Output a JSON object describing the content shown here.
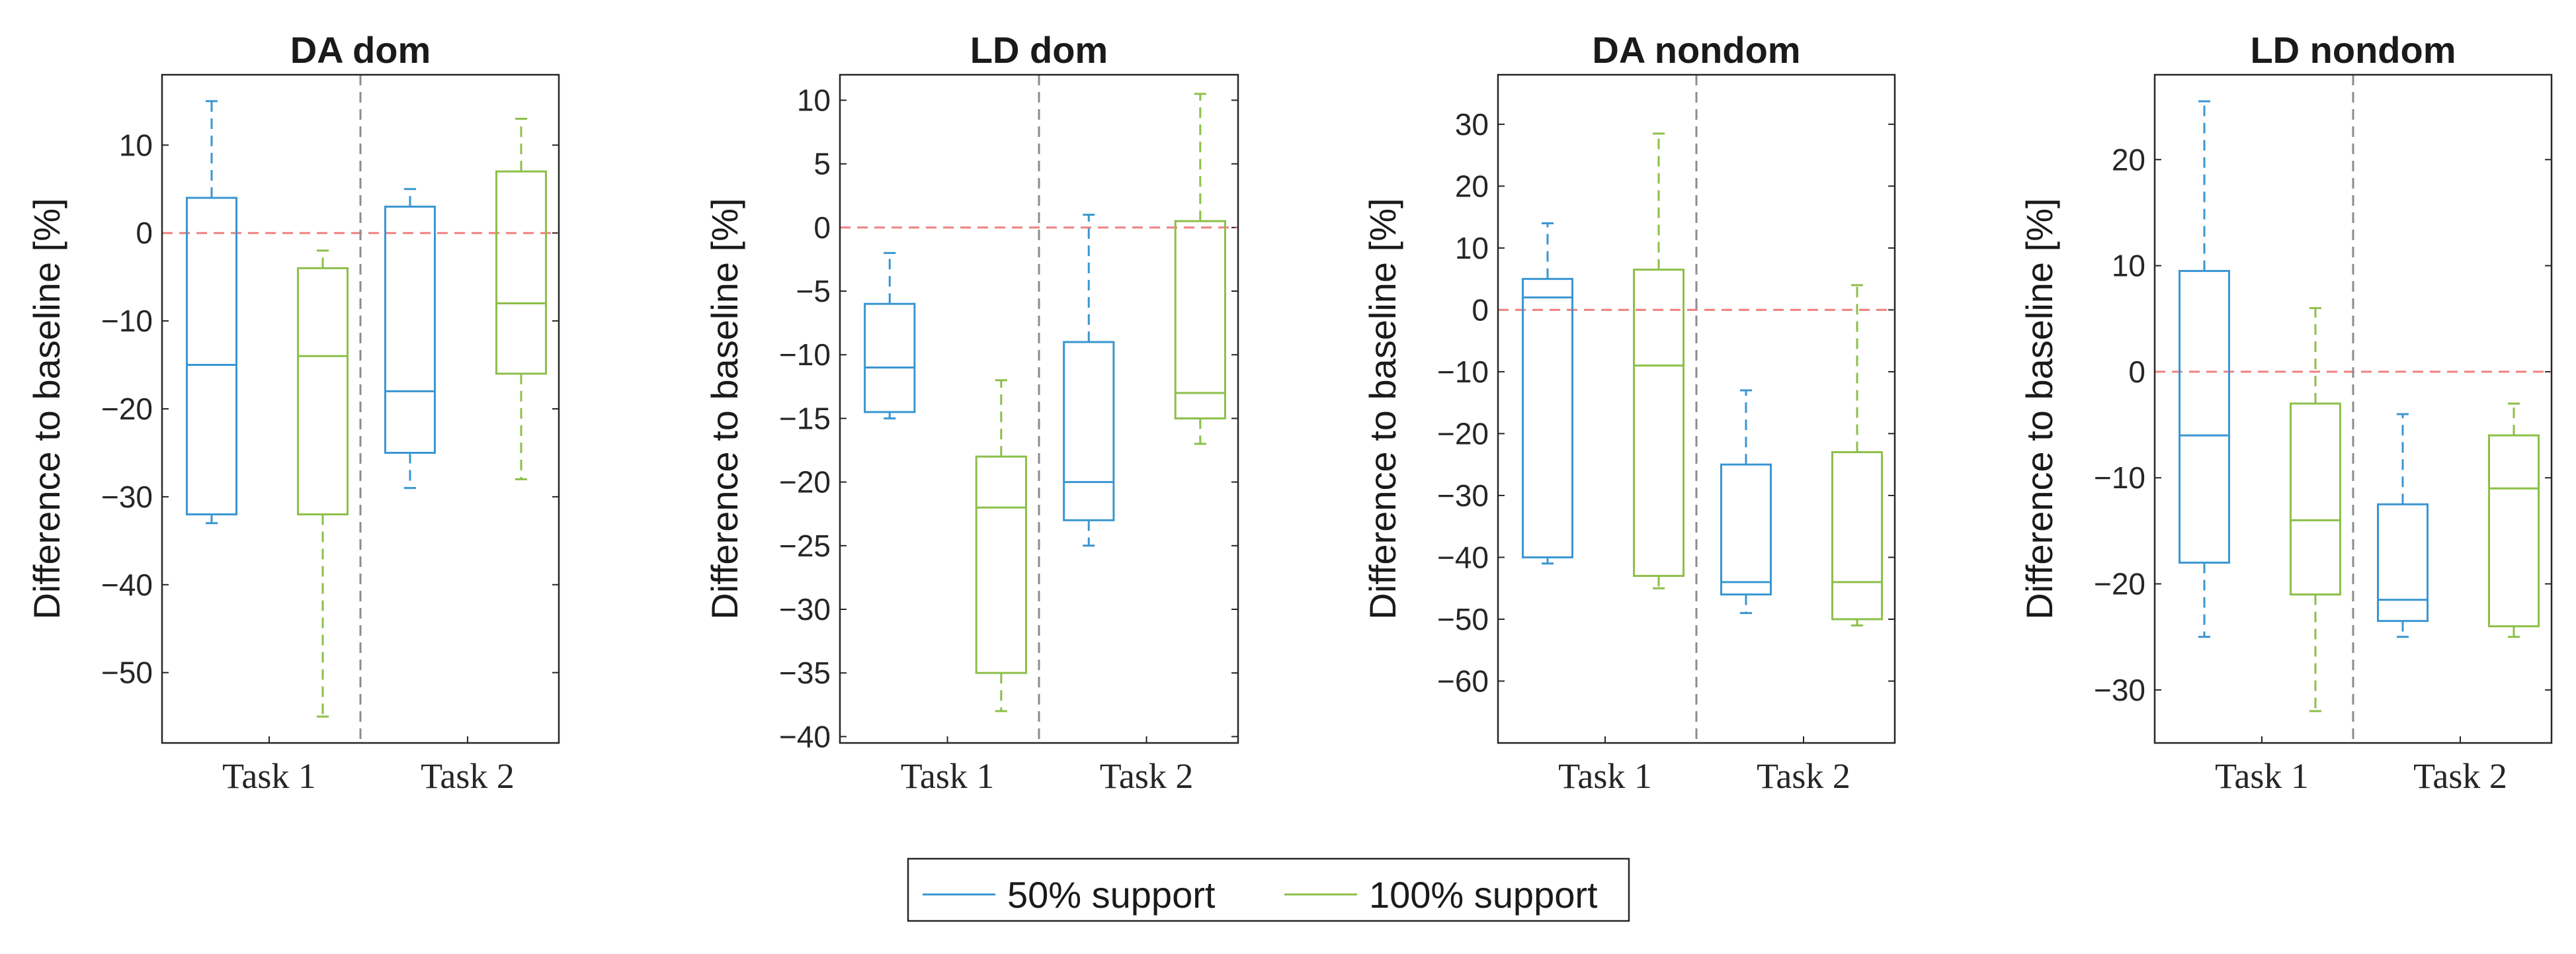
{
  "chart_data": [
    {
      "type": "box",
      "title": "DA dom",
      "ylabel": "Difference to baseline [%]",
      "categories": [
        "Task 1",
        "Task 2"
      ],
      "ylim": [
        -58,
        18
      ],
      "yticks": [
        10,
        0,
        -10,
        -20,
        -30,
        -40,
        -50
      ],
      "baseline": 0,
      "series": [
        {
          "name": "50% support",
          "boxes": [
            {
              "whisker_low": -33,
              "q1": -32,
              "median": -15,
              "q3": 4,
              "whisker_high": 15
            },
            {
              "whisker_low": -29,
              "q1": -25,
              "median": -18,
              "q3": 3,
              "whisker_high": 5
            }
          ]
        },
        {
          "name": "100% support",
          "boxes": [
            {
              "whisker_low": -55,
              "q1": -32,
              "median": -14,
              "q3": -4,
              "whisker_high": -2
            },
            {
              "whisker_low": -28,
              "q1": -16,
              "median": -8,
              "q3": 7,
              "whisker_high": 13
            }
          ]
        }
      ]
    },
    {
      "type": "box",
      "title": "LD dom",
      "ylabel": "Difference to baseline [%]",
      "categories": [
        "Task 1",
        "Task 2"
      ],
      "ylim": [
        -40.5,
        12
      ],
      "yticks": [
        10,
        5,
        0,
        -5,
        -10,
        -15,
        -20,
        -25,
        -30,
        -35,
        -40
      ],
      "baseline": 0,
      "series": [
        {
          "name": "50% support",
          "boxes": [
            {
              "whisker_low": -15,
              "q1": -14.5,
              "median": -11,
              "q3": -6,
              "whisker_high": -2
            },
            {
              "whisker_low": -25,
              "q1": -23,
              "median": -20,
              "q3": -9,
              "whisker_high": 1
            }
          ]
        },
        {
          "name": "100% support",
          "boxes": [
            {
              "whisker_low": -38,
              "q1": -35,
              "median": -22,
              "q3": -18,
              "whisker_high": -12
            },
            {
              "whisker_low": -17,
              "q1": -15,
              "median": -13,
              "q3": 0.5,
              "whisker_high": 10.5
            }
          ]
        }
      ]
    },
    {
      "type": "box",
      "title": "DA nondom",
      "ylabel": "Difference to baseline [%]",
      "categories": [
        "Task 1",
        "Task 2"
      ],
      "ylim": [
        -70,
        38
      ],
      "yticks": [
        30,
        20,
        10,
        0,
        -10,
        -20,
        -30,
        -40,
        -50,
        -60
      ],
      "baseline": 0,
      "series": [
        {
          "name": "50% support",
          "boxes": [
            {
              "whisker_low": -41,
              "q1": -40,
              "median": 2,
              "q3": 5,
              "whisker_high": 14
            },
            {
              "whisker_low": -49,
              "q1": -46,
              "median": -44,
              "q3": -25,
              "whisker_high": -13
            }
          ]
        },
        {
          "name": "100% support",
          "boxes": [
            {
              "whisker_low": -45,
              "q1": -43,
              "median": -9,
              "q3": 6.5,
              "whisker_high": 28.5
            },
            {
              "whisker_low": -51,
              "q1": -50,
              "median": -44,
              "q3": -23,
              "whisker_high": 4
            }
          ]
        }
      ]
    },
    {
      "type": "box",
      "title": "LD nondom",
      "ylabel": "Difference to baseline [%]",
      "categories": [
        "Task 1",
        "Task 2"
      ],
      "ylim": [
        -35,
        28
      ],
      "yticks": [
        20,
        10,
        0,
        -10,
        -20,
        -30
      ],
      "baseline": 0,
      "series": [
        {
          "name": "50% support",
          "boxes": [
            {
              "whisker_low": -25,
              "q1": -18,
              "median": -6,
              "q3": 9.5,
              "whisker_high": 25.5
            },
            {
              "whisker_low": -25,
              "q1": -23.5,
              "median": -21.5,
              "q3": -12.5,
              "whisker_high": -4
            }
          ]
        },
        {
          "name": "100% support",
          "boxes": [
            {
              "whisker_low": -32,
              "q1": -21,
              "median": -14,
              "q3": -3,
              "whisker_high": 6
            },
            {
              "whisker_low": -25,
              "q1": -24,
              "median": -11,
              "q3": -6,
              "whisker_high": -3
            }
          ]
        }
      ]
    }
  ],
  "legend": {
    "position": "bottom-center",
    "items": [
      {
        "label": "50% support",
        "color": "#3a96d2"
      },
      {
        "label": "100% support",
        "color": "#8cbf4a"
      }
    ]
  },
  "colors": {
    "series_50": "#3a96d2",
    "series_100": "#8cbf4a",
    "baseline": "#f08080",
    "divider": "#8c8c8c",
    "axis": "#262626"
  }
}
